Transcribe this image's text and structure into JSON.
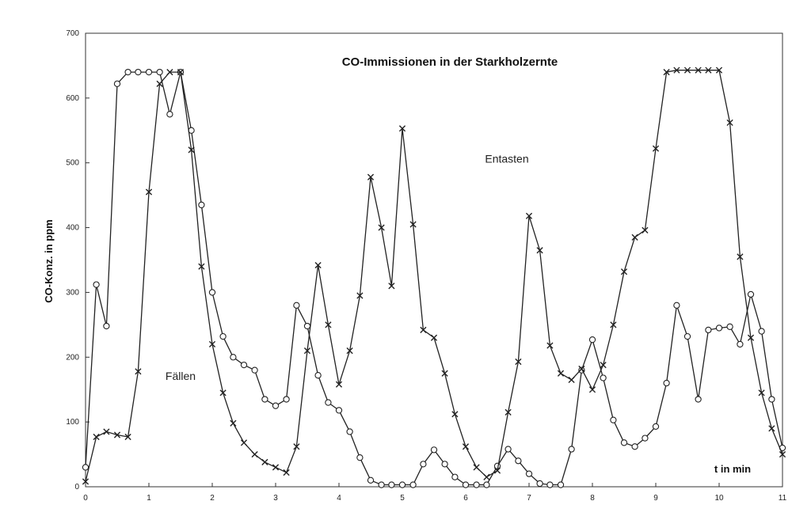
{
  "chart_data": {
    "type": "line",
    "title": "CO-Immissionen in der Starkholzernte",
    "xlabel": "t in min",
    "ylabel": "CO-Konz. in ppm",
    "xlim": [
      0,
      11
    ],
    "ylim": [
      0,
      700
    ],
    "xticks": [
      "0",
      "1",
      "2",
      "3",
      "4",
      "5",
      "6",
      "7",
      "8",
      "9",
      "10",
      "11"
    ],
    "yticks": [
      "0",
      "100",
      "200",
      "300",
      "400",
      "500",
      "600",
      "700"
    ],
    "grid": false,
    "annotations": [
      {
        "text": "Entasten",
        "x": 6.65,
        "y": 500
      },
      {
        "text": "Fällen",
        "x": 1.5,
        "y": 165
      }
    ],
    "series": [
      {
        "marker": "circle",
        "color": "#222222",
        "x": [
          0.0,
          0.17,
          0.33,
          0.5,
          0.67,
          0.83,
          1.0,
          1.17,
          1.33,
          1.5,
          1.67,
          1.83,
          2.0,
          2.17,
          2.33,
          2.5,
          2.67,
          2.83,
          3.0,
          3.17,
          3.33,
          3.5,
          3.67,
          3.83,
          4.0,
          4.17,
          4.33,
          4.5,
          4.67,
          4.83,
          5.0,
          5.17,
          5.33,
          5.5,
          5.67,
          5.83,
          6.0,
          6.17,
          6.33,
          6.5,
          6.67,
          6.83,
          7.0,
          7.17,
          7.33,
          7.5,
          7.67,
          7.83,
          8.0,
          8.17,
          8.33,
          8.5,
          8.67,
          8.83,
          9.0,
          9.17,
          9.33,
          9.5,
          9.67,
          9.83,
          10.0,
          10.17,
          10.33,
          10.5,
          10.67,
          10.83,
          11.0
        ],
        "y": [
          30,
          312,
          248,
          622,
          640,
          640,
          640,
          640,
          575,
          640,
          550,
          435,
          300,
          232,
          200,
          188,
          180,
          135,
          125,
          135,
          280,
          248,
          172,
          130,
          118,
          85,
          45,
          10,
          3,
          3,
          3,
          3,
          35,
          57,
          35,
          15,
          3,
          3,
          3,
          32,
          58,
          40,
          20,
          5,
          3,
          3,
          58,
          180,
          227,
          168,
          103,
          68,
          62,
          75,
          93,
          160,
          280,
          232,
          135,
          242,
          245,
          247,
          220,
          297,
          240,
          135,
          60
        ]
      },
      {
        "marker": "cross",
        "color": "#222222",
        "x": [
          0.0,
          0.17,
          0.33,
          0.5,
          0.67,
          0.83,
          1.0,
          1.17,
          1.33,
          1.5,
          1.67,
          1.83,
          2.0,
          2.17,
          2.33,
          2.5,
          2.67,
          2.83,
          3.0,
          3.17,
          3.33,
          3.5,
          3.67,
          3.83,
          4.0,
          4.17,
          4.33,
          4.5,
          4.67,
          4.83,
          5.0,
          5.17,
          5.33,
          5.5,
          5.67,
          5.83,
          6.0,
          6.17,
          6.33,
          6.5,
          6.67,
          6.83,
          7.0,
          7.17,
          7.33,
          7.5,
          7.67,
          7.83,
          8.0,
          8.17,
          8.33,
          8.5,
          8.67,
          8.83,
          9.0,
          9.17,
          9.33,
          9.5,
          9.67,
          9.83,
          10.0,
          10.17,
          10.33,
          10.5,
          10.67,
          10.83,
          11.0
        ],
        "y": [
          8,
          77,
          85,
          80,
          77,
          178,
          455,
          622,
          640,
          640,
          520,
          340,
          220,
          145,
          98,
          68,
          50,
          38,
          30,
          22,
          62,
          210,
          342,
          250,
          158,
          210,
          295,
          478,
          400,
          310,
          553,
          405,
          242,
          230,
          175,
          112,
          62,
          30,
          15,
          25,
          115,
          193,
          418,
          365,
          218,
          175,
          165,
          182,
          150,
          188,
          250,
          332,
          385,
          396,
          522,
          640,
          643,
          643,
          643,
          643,
          643,
          562,
          355,
          230,
          145,
          90,
          50
        ]
      }
    ]
  }
}
